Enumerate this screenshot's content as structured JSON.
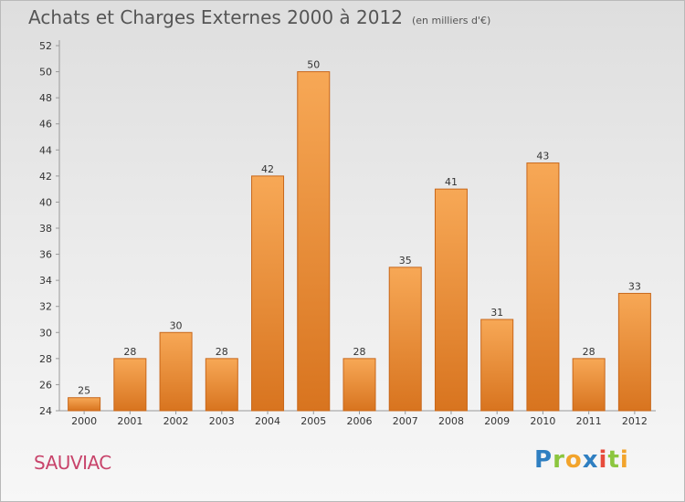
{
  "header": {
    "title": "Achats et Charges Externes 2000 à 2012",
    "subtitle": "(en milliers d'€)"
  },
  "commune": "SAUVIAC",
  "logo": {
    "letters": [
      {
        "ch": "P",
        "color": "#2f7fc1"
      },
      {
        "ch": "r",
        "color": "#8cc63f"
      },
      {
        "ch": "o",
        "color": "#f2a42c"
      },
      {
        "ch": "x",
        "color": "#2f7fc1"
      },
      {
        "ch": "i",
        "color": "#e74c3c"
      },
      {
        "ch": "t",
        "color": "#8cc63f"
      },
      {
        "ch": "i",
        "color": "#f2a42c"
      }
    ]
  },
  "chart_data": {
    "type": "bar",
    "title": "Achats et Charges Externes 2000 à 2012",
    "subtitle": "(en milliers d'€)",
    "categories": [
      "2000",
      "2001",
      "2002",
      "2003",
      "2004",
      "2005",
      "2006",
      "2007",
      "2008",
      "2009",
      "2010",
      "2011",
      "2012"
    ],
    "values": [
      25,
      28,
      30,
      28,
      42,
      50,
      28,
      35,
      41,
      31,
      43,
      28,
      33
    ],
    "ylim": [
      24,
      52
    ],
    "yticks": [
      24,
      26,
      28,
      30,
      32,
      34,
      36,
      38,
      40,
      42,
      44,
      46,
      48,
      50,
      52
    ],
    "grid": false,
    "bar_color_top": "#f7a856",
    "bar_color_bottom": "#d8741f",
    "bar_edge_color": "#c8671a",
    "show_value_labels": true
  }
}
